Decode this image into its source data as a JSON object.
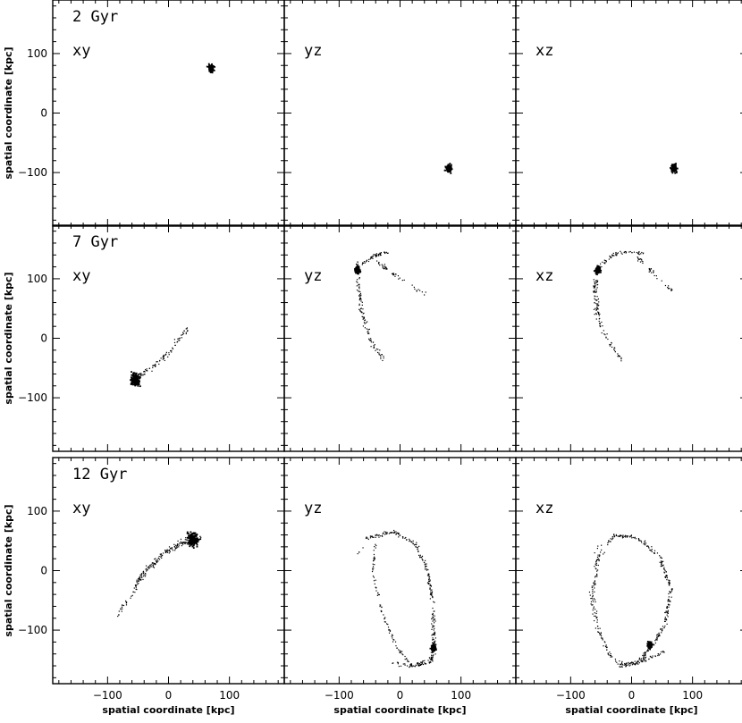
{
  "chart_data": {
    "type": "scatter",
    "xlim": [
      -190,
      190
    ],
    "ylim": [
      -190,
      190
    ],
    "xticks": [
      -100,
      0,
      100
    ],
    "yticks": [
      -100,
      0,
      100
    ],
    "xlabel": "spatial coordinate [kpc]",
    "ylabel": "spatial coordinate [kpc]",
    "grid": false,
    "rows": [
      {
        "time_label": "2 Gyr",
        "panels": [
          {
            "projection": "xy",
            "clumps": [
              {
                "x": 70,
                "y": 75,
                "spread": 5,
                "n": 60
              }
            ],
            "arcs": []
          },
          {
            "projection": "yz",
            "clumps": [
              {
                "x": 80,
                "y": -93,
                "spread": 5,
                "n": 70
              }
            ],
            "arcs": []
          },
          {
            "projection": "xz",
            "clumps": [
              {
                "x": 70,
                "y": -93,
                "spread": 5,
                "n": 70
              }
            ],
            "arcs": []
          }
        ]
      },
      {
        "time_label": "7 Gyr",
        "panels": [
          {
            "projection": "xy",
            "clumps": [
              {
                "x": -55,
                "y": -70,
                "spread": 8,
                "n": 140
              }
            ],
            "arcs": [
              {
                "points": [
                  [
                    -55,
                    -70
                  ],
                  [
                    -35,
                    -55
                  ],
                  [
                    -10,
                    -35
                  ],
                  [
                    10,
                    -10
                  ],
                  [
                    30,
                    15
                  ]
                ],
                "n": 90,
                "jitter": 4
              }
            ]
          },
          {
            "projection": "yz",
            "clumps": [
              {
                "x": -70,
                "y": 115,
                "spread": 4,
                "n": 70
              }
            ],
            "arcs": [
              {
                "points": [
                  [
                    -70,
                    130
                  ],
                  [
                    -68,
                    90
                  ],
                  [
                    -62,
                    40
                  ],
                  [
                    -45,
                    -10
                  ],
                  [
                    -25,
                    -40
                  ]
                ],
                "n": 120,
                "jitter": 4
              },
              {
                "points": [
                  [
                    -70,
                    118
                  ],
                  [
                    -40,
                    140
                  ],
                  [
                    -20,
                    145
                  ]
                ],
                "n": 50,
                "jitter": 3
              },
              {
                "points": [
                  [
                    -40,
                    130
                  ],
                  [
                    0,
                    100
                  ],
                  [
                    30,
                    80
                  ],
                  [
                    40,
                    75
                  ]
                ],
                "n": 45,
                "jitter": 3
              }
            ]
          },
          {
            "projection": "xz",
            "clumps": [
              {
                "x": -55,
                "y": 115,
                "spread": 4,
                "n": 70
              }
            ],
            "arcs": [
              {
                "points": [
                  [
                    -55,
                    125
                  ],
                  [
                    -60,
                    80
                  ],
                  [
                    -55,
                    30
                  ],
                  [
                    -35,
                    -10
                  ],
                  [
                    -15,
                    -40
                  ]
                ],
                "n": 120,
                "jitter": 4
              },
              {
                "points": [
                  [
                    -55,
                    118
                  ],
                  [
                    -30,
                    140
                  ],
                  [
                    0,
                    145
                  ],
                  [
                    20,
                    142
                  ]
                ],
                "n": 55,
                "jitter": 3
              },
              {
                "points": [
                  [
                    10,
                    135
                  ],
                  [
                    35,
                    110
                  ],
                  [
                    55,
                    90
                  ],
                  [
                    70,
                    80
                  ]
                ],
                "n": 40,
                "jitter": 3
              }
            ]
          }
        ]
      },
      {
        "time_label": "12 Gyr",
        "panels": [
          {
            "projection": "xy",
            "clumps": [
              {
                "x": 40,
                "y": 53,
                "spread": 9,
                "n": 180
              }
            ],
            "arcs": [
              {
                "points": [
                  [
                    55,
                    55
                  ],
                  [
                    20,
                    45
                  ],
                  [
                    -10,
                    25
                  ],
                  [
                    -40,
                    -5
                  ],
                  [
                    -60,
                    -40
                  ]
                ],
                "n": 120,
                "jitter": 4
              },
              {
                "points": [
                  [
                    45,
                    55
                  ],
                  [
                    20,
                    50
                  ],
                  [
                    -20,
                    20
                  ],
                  [
                    -45,
                    -5
                  ],
                  [
                    -55,
                    -30
                  ]
                ],
                "n": 70,
                "jitter": 4
              },
              {
                "points": [
                  [
                    -60,
                    -40
                  ],
                  [
                    -75,
                    -60
                  ],
                  [
                    -85,
                    -75
                  ]
                ],
                "n": 20,
                "jitter": 3
              }
            ]
          },
          {
            "projection": "yz",
            "clumps": [
              {
                "x": 55,
                "y": -130,
                "spread": 4,
                "n": 60
              }
            ],
            "arcs": [
              {
                "points": [
                  [
                    -55,
                    55
                  ],
                  [
                    -10,
                    65
                  ],
                  [
                    25,
                    45
                  ],
                  [
                    45,
                    0
                  ],
                  [
                    55,
                    -60
                  ],
                  [
                    55,
                    -120
                  ],
                  [
                    50,
                    -155
                  ],
                  [
                    20,
                    -160
                  ]
                ],
                "n": 260,
                "jitter": 3
              },
              {
                "points": [
                  [
                    -40,
                    50
                  ],
                  [
                    -45,
                    0
                  ],
                  [
                    -30,
                    -70
                  ],
                  [
                    -5,
                    -130
                  ],
                  [
                    20,
                    -160
                  ]
                ],
                "n": 90,
                "jitter": 2
              },
              {
                "points": [
                  [
                    -10,
                    -155
                  ],
                  [
                    20,
                    -160
                  ],
                  [
                    50,
                    -150
                  ],
                  [
                    60,
                    -140
                  ]
                ],
                "n": 45,
                "jitter": 4
              },
              {
                "points": [
                  [
                    -70,
                    25
                  ],
                  [
                    -60,
                    40
                  ]
                ],
                "n": 4,
                "jitter": 3
              }
            ]
          },
          {
            "projection": "xz",
            "clumps": [
              {
                "x": 30,
                "y": -125,
                "spread": 4,
                "n": 60
              }
            ],
            "arcs": [
              {
                "points": [
                  [
                    -30,
                    60
                  ],
                  [
                    10,
                    55
                  ],
                  [
                    45,
                    25
                  ],
                  [
                    65,
                    -30
                  ],
                  [
                    55,
                    -90
                  ],
                  [
                    35,
                    -125
                  ],
                  [
                    10,
                    -155
                  ],
                  [
                    -20,
                    -160
                  ]
                ],
                "n": 260,
                "jitter": 3
              },
              {
                "points": [
                  [
                    -30,
                    60
                  ],
                  [
                    -55,
                    20
                  ],
                  [
                    -65,
                    -40
                  ],
                  [
                    -55,
                    -100
                  ],
                  [
                    -30,
                    -150
                  ],
                  [
                    -10,
                    -160
                  ]
                ],
                "n": 140,
                "jitter": 4
              },
              {
                "points": [
                  [
                    -20,
                    -160
                  ],
                  [
                    10,
                    -155
                  ],
                  [
                    35,
                    -145
                  ],
                  [
                    55,
                    -135
                  ]
                ],
                "n": 45,
                "jitter": 4
              },
              {
                "points": [
                  [
                    -60,
                    30
                  ],
                  [
                    -50,
                    45
                  ]
                ],
                "n": 4,
                "jitter": 3
              }
            ]
          }
        ]
      }
    ]
  }
}
